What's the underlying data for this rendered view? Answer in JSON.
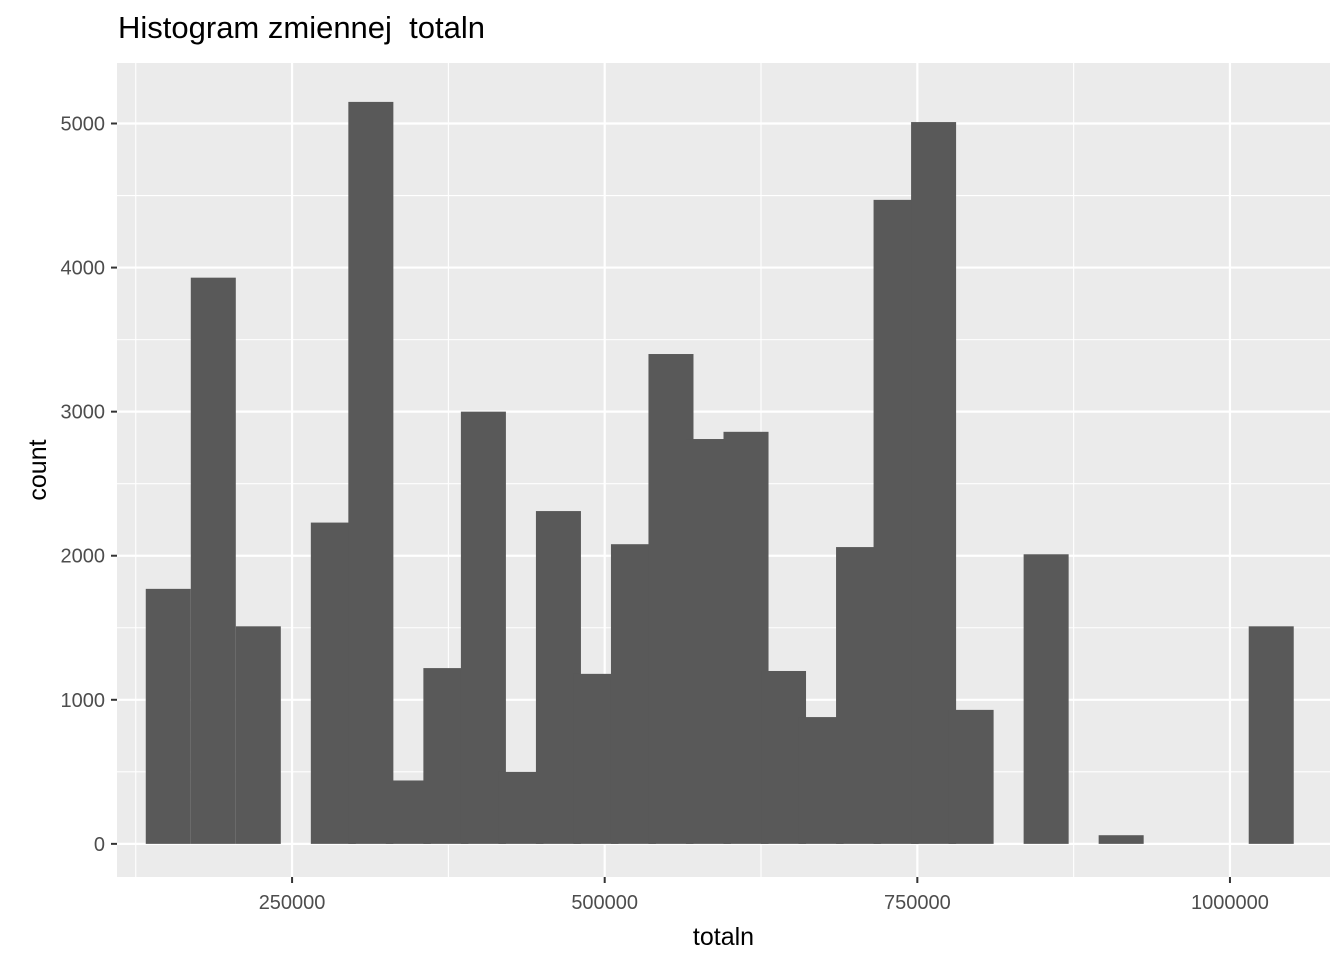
{
  "chart_data": {
    "type": "histogram",
    "title": "Histogram zmiennej  totaln",
    "xlabel": "totaln",
    "ylabel": "count",
    "xlim": [
      110000,
      1080000
    ],
    "ylim": [
      -230,
      5420
    ],
    "binwidth": 36000,
    "x_ticks": [
      250000,
      500000,
      750000,
      1000000
    ],
    "x_tick_labels": [
      "250000",
      "500000",
      "750000",
      "1000000"
    ],
    "y_ticks": [
      0,
      1000,
      2000,
      3000,
      4000,
      5000
    ],
    "y_tick_labels": [
      "0",
      "1000",
      "2000",
      "3000",
      "4000",
      "5000"
    ],
    "grid": true,
    "bar_color": "#595959",
    "panel_color": "#ebebeb",
    "bins": [
      {
        "x": 151000,
        "count": 1770
      },
      {
        "x": 187000,
        "count": 3930
      },
      {
        "x": 223000,
        "count": 1510
      },
      {
        "x": 283000,
        "count": 2230
      },
      {
        "x": 313000,
        "count": 5150
      },
      {
        "x": 343000,
        "count": 440
      },
      {
        "x": 373000,
        "count": 1220
      },
      {
        "x": 403000,
        "count": 3000
      },
      {
        "x": 433000,
        "count": 500
      },
      {
        "x": 463000,
        "count": 2310
      },
      {
        "x": 493000,
        "count": 1180
      },
      {
        "x": 523000,
        "count": 2080
      },
      {
        "x": 553000,
        "count": 3400
      },
      {
        "x": 583000,
        "count": 2810
      },
      {
        "x": 613000,
        "count": 2860
      },
      {
        "x": 643000,
        "count": 1200
      },
      {
        "x": 673000,
        "count": 880
      },
      {
        "x": 703000,
        "count": 2060
      },
      {
        "x": 733000,
        "count": 4470
      },
      {
        "x": 763000,
        "count": 5010
      },
      {
        "x": 793000,
        "count": 930
      },
      {
        "x": 853000,
        "count": 2010
      },
      {
        "x": 913000,
        "count": 60
      },
      {
        "x": 1033000,
        "count": 1510
      }
    ]
  }
}
